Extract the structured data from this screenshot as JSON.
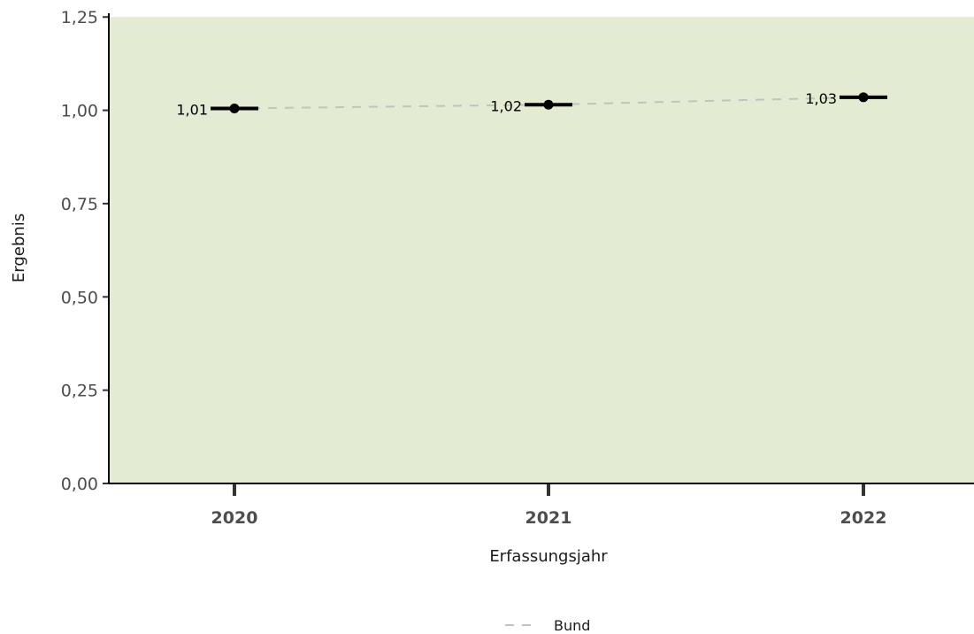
{
  "chart_data": {
    "type": "line",
    "title": "",
    "xlabel": "Erfassungsjahr",
    "ylabel": "Ergebnis",
    "categories": [
      "2020",
      "2021",
      "2022"
    ],
    "ylim": [
      0,
      1.26
    ],
    "yticks": [
      "0,00",
      "0,25",
      "0,50",
      "0,75",
      "1,00",
      "1,25"
    ],
    "ytick_values": [
      0,
      0.25,
      0.5,
      0.75,
      1.0,
      1.25
    ],
    "reference_band": {
      "from": 0,
      "to": 1.25,
      "color": "#e3ebd3"
    },
    "points": {
      "values": [
        1.005,
        1.015,
        1.035
      ],
      "labels": [
        "1,01",
        "1,02",
        "1,03"
      ],
      "color": "#000000"
    },
    "series": [
      {
        "name": "Bund",
        "values": [
          1.005,
          1.015,
          1.035
        ],
        "style": "dashed",
        "color": "#c0c4bc"
      }
    ],
    "legend": {
      "position": "bottom",
      "items": [
        "Bund"
      ]
    },
    "grid": false
  }
}
